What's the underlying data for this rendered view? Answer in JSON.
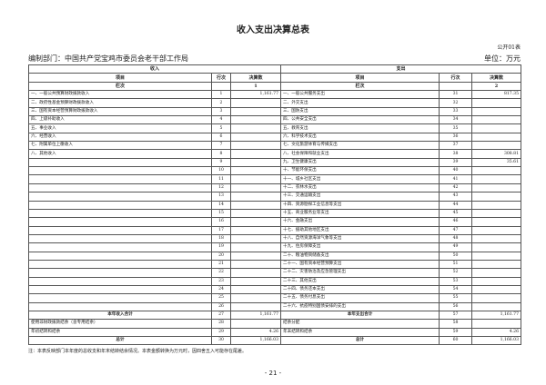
{
  "title": "收入支出决算总表",
  "form_no": "公开01表",
  "dept": "编制部门：中国共产党宝鸡市委员会老干部工作局",
  "unit": "单位：万元",
  "header": {
    "income": "收入",
    "expense": "支出",
    "item": "项目",
    "line_no": "行次",
    "amount": "决算数",
    "column_no": "栏次",
    "income_col": "1",
    "expense_col": "2"
  },
  "rows": [
    {
      "li": "一、一般公共预算财政拨款收入",
      "ln": "1",
      "lv": "1,161.77",
      "ri": "一、一般公共服务支出",
      "rn": "31",
      "rv": "817.35"
    },
    {
      "li": "二、政府性基金预算财政拨款收入",
      "ln": "2",
      "lv": "",
      "ri": "二、外交支出",
      "rn": "32",
      "rv": ""
    },
    {
      "li": "三、国有资本经营预算财政拨款收入",
      "ln": "3",
      "lv": "",
      "ri": "三、国防支出",
      "rn": "33",
      "rv": ""
    },
    {
      "li": "四、上级补助收入",
      "ln": "4",
      "lv": "",
      "ri": "四、公共安全支出",
      "rn": "34",
      "rv": ""
    },
    {
      "li": "五、事业收入",
      "ln": "5",
      "lv": "",
      "ri": "五、教育支出",
      "rn": "35",
      "rv": ""
    },
    {
      "li": "六、经营收入",
      "ln": "6",
      "lv": "",
      "ri": "六、科学技术支出",
      "rn": "36",
      "rv": ""
    },
    {
      "li": "七、附属单位上缴收入",
      "ln": "7",
      "lv": "",
      "ri": "七、文化旅游体育与传媒支出",
      "rn": "37",
      "rv": ""
    },
    {
      "li": "八、其他收入",
      "ln": "8",
      "lv": "",
      "ri": "八、社会保障和就业支出",
      "rn": "38",
      "rv": "308.81"
    },
    {
      "li": "",
      "ln": "9",
      "lv": "",
      "ri": "九、卫生健康支出",
      "rn": "39",
      "rv": "35.61"
    },
    {
      "li": "",
      "ln": "10",
      "lv": "",
      "ri": "十、节能环保支出",
      "rn": "40",
      "rv": ""
    },
    {
      "li": "",
      "ln": "11",
      "lv": "",
      "ri": "十一、城乡社区支出",
      "rn": "41",
      "rv": ""
    },
    {
      "li": "",
      "ln": "12",
      "lv": "",
      "ri": "十二、农林水支出",
      "rn": "42",
      "rv": ""
    },
    {
      "li": "",
      "ln": "13",
      "lv": "",
      "ri": "十三、交通运输支出",
      "rn": "43",
      "rv": ""
    },
    {
      "li": "",
      "ln": "14",
      "lv": "",
      "ri": "十四、资源勘探工业信息等支出",
      "rn": "44",
      "rv": ""
    },
    {
      "li": "",
      "ln": "15",
      "lv": "",
      "ri": "十五、商业服务业等支出",
      "rn": "45",
      "rv": ""
    },
    {
      "li": "",
      "ln": "16",
      "lv": "",
      "ri": "十六、金融支出",
      "rn": "46",
      "rv": ""
    },
    {
      "li": "",
      "ln": "17",
      "lv": "",
      "ri": "十七、援助其他地区支出",
      "rn": "47",
      "rv": ""
    },
    {
      "li": "",
      "ln": "18",
      "lv": "",
      "ri": "十八、自然资源海洋气象等支出",
      "rn": "48",
      "rv": ""
    },
    {
      "li": "",
      "ln": "19",
      "lv": "",
      "ri": "十九、住房保障支出",
      "rn": "49",
      "rv": ""
    },
    {
      "li": "",
      "ln": "20",
      "lv": "",
      "ri": "二十、粮油物资储备支出",
      "rn": "50",
      "rv": ""
    },
    {
      "li": "",
      "ln": "21",
      "lv": "",
      "ri": "二十一、国有资本经营预算支出",
      "rn": "51",
      "rv": ""
    },
    {
      "li": "",
      "ln": "22",
      "lv": "",
      "ri": "二十二、灾害防治及应急管理支出",
      "rn": "52",
      "rv": ""
    },
    {
      "li": "",
      "ln": "23",
      "lv": "",
      "ri": "二十三、其他支出",
      "rn": "53",
      "rv": ""
    },
    {
      "li": "",
      "ln": "24",
      "lv": "",
      "ri": "二十四、债务还本支出",
      "rn": "54",
      "rv": ""
    },
    {
      "li": "",
      "ln": "25",
      "lv": "",
      "ri": "二十五、债务付息支出",
      "rn": "55",
      "rv": ""
    },
    {
      "li": "",
      "ln": "26",
      "lv": "",
      "ri": "二十六、抗疫特别国债安排的支出",
      "rn": "56",
      "rv": ""
    },
    {
      "li": "本年收入合计",
      "ln": "27",
      "lv": "1,161.77",
      "ri": "本年支出合计",
      "rn": "57",
      "rv": "1,161.77",
      "bold": true
    },
    {
      "li": "使用非财政拨款结余（含专用结余）",
      "ln": "28",
      "lv": "",
      "ri": "结余分配",
      "rn": "58",
      "rv": ""
    },
    {
      "li": "年初结转和结余",
      "ln": "29",
      "lv": "4.26",
      "ri": "年末结转和结余",
      "rn": "59",
      "rv": "4.26"
    },
    {
      "li": "总计",
      "ln": "30",
      "lv": "1,166.03",
      "ri": "总计",
      "rn": "60",
      "rv": "1,166.03",
      "bold": true
    }
  ],
  "note": "注：本表反映部门本年度的总收支和年末结转结余情况。本表金额转换为万元时，因四舍五入可能存在尾差。",
  "page_number": "- 21 -"
}
